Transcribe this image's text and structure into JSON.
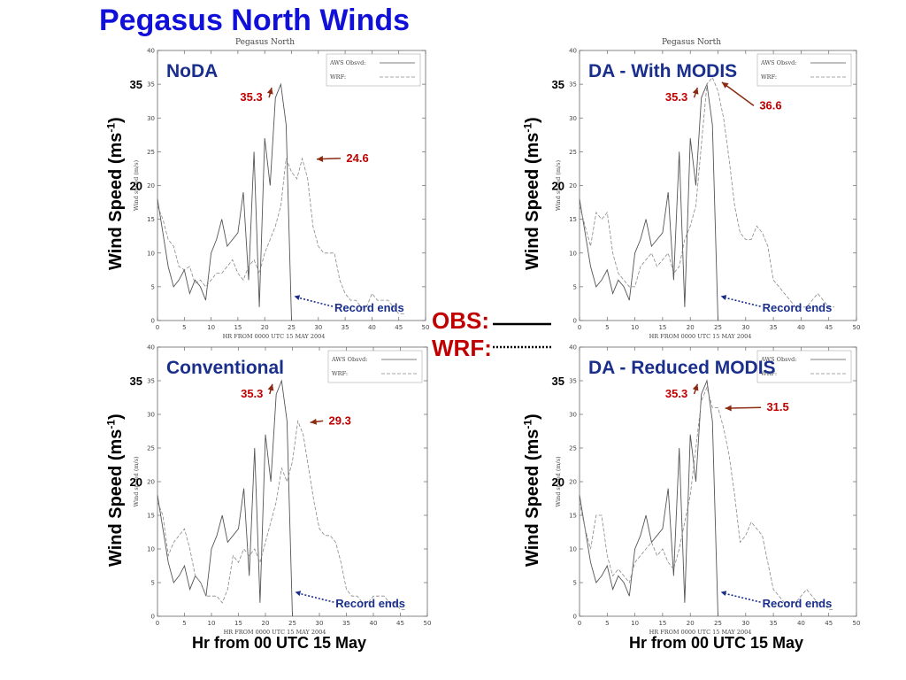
{
  "page": {
    "title": "Pegasus North Winds",
    "y_axis_label": "Wind Speed (ms-1)",
    "x_axis_label": "Hr from 00 UTC 15 May",
    "legend": {
      "obs_label": "OBS:",
      "wrf_label": "WRF:"
    }
  },
  "colors": {
    "title": "#1010d8",
    "panel_title": "#1a2f8c",
    "annotation": "#c00000",
    "arrow": "#8b2a10",
    "record_ends": "#1a2f8c",
    "obs_line": "#555555",
    "wrf_line": "#888888"
  },
  "chart_data": [
    {
      "id": "noda",
      "type": "line",
      "title": "NoDA",
      "plot_title": "Pegasus North",
      "plot_ylabel": "Wind speed (m/s)",
      "plot_xlabel": "HR FROM 0000 UTC 15 MAY 2004",
      "legend_labels": [
        "AWS Obsvd:",
        "WRF:"
      ],
      "xlim": [
        0,
        50
      ],
      "ylim": [
        0,
        40
      ],
      "xticks": [
        0,
        5,
        10,
        15,
        20,
        25,
        30,
        35,
        40,
        45,
        50
      ],
      "yticks": [
        0,
        5,
        10,
        15,
        20,
        25,
        30,
        35,
        40
      ],
      "highlight_ticks": [
        {
          "value": 35,
          "label": "35"
        },
        {
          "value": 20,
          "label": "20"
        }
      ],
      "series": [
        {
          "name": "AWS Obsvd:",
          "x": [
            0,
            1,
            2,
            3,
            4,
            5,
            6,
            7,
            8,
            9,
            10,
            11,
            12,
            13,
            14,
            15,
            16,
            17,
            18,
            19,
            20,
            21,
            22,
            23,
            24,
            25
          ],
          "y": [
            18,
            13,
            8,
            5,
            6,
            7.5,
            4,
            6,
            5,
            3,
            10,
            12,
            15,
            11,
            12,
            13,
            19,
            6,
            25,
            2,
            27,
            20,
            33,
            35,
            29,
            0
          ]
        },
        {
          "name": "WRF:",
          "x": [
            0,
            1,
            2,
            3,
            4,
            5,
            6,
            7,
            8,
            9,
            10,
            11,
            12,
            13,
            14,
            15,
            16,
            17,
            18,
            19,
            20,
            21,
            22,
            23,
            24,
            25,
            26,
            27,
            28,
            29,
            30,
            31,
            32,
            33,
            34,
            35,
            36,
            37,
            38,
            39,
            40,
            41,
            42,
            43,
            44,
            45,
            46
          ],
          "y": [
            17,
            15,
            12,
            11,
            8,
            7.5,
            8,
            5.5,
            6,
            5,
            6,
            7,
            7,
            8,
            9,
            7,
            6,
            8,
            9,
            7,
            10,
            12,
            14,
            17,
            24,
            22,
            21,
            24,
            21,
            14,
            11,
            10,
            10,
            10,
            6,
            4,
            3,
            3,
            2,
            2,
            4,
            3,
            3,
            3,
            2,
            1,
            1
          ]
        }
      ],
      "annotations": [
        {
          "label": "35.3",
          "x": 17.5,
          "y": 32.5,
          "arrow_to_x": 21.3,
          "arrow_to_y": 34.5
        },
        {
          "label": "24.6",
          "x": 37.3,
          "y": 23.5,
          "arrow_to_x": 29.7,
          "arrow_to_y": 23.9
        }
      ],
      "record_ends": {
        "label": "Record ends",
        "x": 33,
        "y": 1.3,
        "arrow_to_x": 25.5,
        "arrow_to_y": 3.6
      }
    },
    {
      "id": "da-with-modis",
      "type": "line",
      "title": "DA - With MODIS",
      "plot_title": "Pegasus North",
      "plot_ylabel": "Wind speed (m/s)",
      "plot_xlabel": "HR FROM 0000 UTC 15 MAY 2004",
      "legend_labels": [
        "AWS Obsvd:",
        "WRF:"
      ],
      "xlim": [
        0,
        50
      ],
      "ylim": [
        0,
        40
      ],
      "xticks": [
        0,
        5,
        10,
        15,
        20,
        25,
        30,
        35,
        40,
        45,
        50
      ],
      "yticks": [
        0,
        5,
        10,
        15,
        20,
        25,
        30,
        35,
        40
      ],
      "highlight_ticks": [
        {
          "value": 35,
          "label": "35"
        },
        {
          "value": 20,
          "label": "20"
        }
      ],
      "series": [
        {
          "name": "AWS Obsvd:",
          "x": [
            0,
            1,
            2,
            3,
            4,
            5,
            6,
            7,
            8,
            9,
            10,
            11,
            12,
            13,
            14,
            15,
            16,
            17,
            18,
            19,
            20,
            21,
            22,
            23,
            24,
            25
          ],
          "y": [
            18,
            13,
            8,
            5,
            6,
            7.5,
            4,
            6,
            5,
            3,
            10,
            12,
            15,
            11,
            12,
            13,
            19,
            6,
            25,
            2,
            27,
            20,
            33,
            35,
            29,
            0
          ]
        },
        {
          "name": "WRF:",
          "x": [
            0,
            1,
            2,
            3,
            4,
            5,
            6,
            7,
            8,
            9,
            10,
            11,
            12,
            13,
            14,
            15,
            16,
            17,
            18,
            19,
            20,
            21,
            22,
            23,
            24,
            25,
            26,
            27,
            28,
            29,
            30,
            31,
            32,
            33,
            34,
            35,
            36,
            37,
            38,
            39,
            40,
            41,
            42,
            43,
            44,
            45,
            46
          ],
          "y": [
            17,
            14,
            11,
            16,
            15,
            16,
            10,
            7,
            6,
            5,
            5,
            8,
            9,
            10,
            8,
            9,
            10,
            7,
            8,
            12,
            14,
            17,
            26,
            35,
            36,
            34,
            30,
            24,
            17,
            13,
            12,
            12,
            14,
            13,
            11,
            6,
            5,
            4,
            3,
            2,
            2,
            2,
            3,
            4,
            3,
            2,
            2
          ]
        }
      ],
      "annotations": [
        {
          "label": "35.3",
          "x": 17.5,
          "y": 32.5,
          "arrow_to_x": 21.3,
          "arrow_to_y": 34.5
        },
        {
          "label": "36.6",
          "x": 34.5,
          "y": 31.3,
          "arrow_to_x": 25.7,
          "arrow_to_y": 35.3
        }
      ],
      "record_ends": {
        "label": "Record ends",
        "x": 33,
        "y": 1.3,
        "arrow_to_x": 25.5,
        "arrow_to_y": 3.6
      }
    },
    {
      "id": "conventional",
      "type": "line",
      "title": "Conventional",
      "plot_title": "",
      "plot_ylabel": "Wind speed (m/s)",
      "plot_xlabel": "HR FROM 0000 UTC 15 MAY 2004",
      "legend_labels": [
        "AWS Obsvd:",
        "WRF:"
      ],
      "xlim": [
        0,
        50
      ],
      "ylim": [
        0,
        40
      ],
      "xticks": [
        0,
        5,
        10,
        15,
        20,
        25,
        30,
        35,
        40,
        45,
        50
      ],
      "yticks": [
        0,
        5,
        10,
        15,
        20,
        25,
        30,
        35,
        40
      ],
      "highlight_ticks": [
        {
          "value": 35,
          "label": "35"
        },
        {
          "value": 20,
          "label": "20"
        }
      ],
      "series": [
        {
          "name": "AWS Obsvd:",
          "x": [
            0,
            1,
            2,
            3,
            4,
            5,
            6,
            7,
            8,
            9,
            10,
            11,
            12,
            13,
            14,
            15,
            16,
            17,
            18,
            19,
            20,
            21,
            22,
            23,
            24,
            25
          ],
          "y": [
            18,
            13,
            8,
            5,
            6,
            7.5,
            4,
            6,
            5,
            3,
            10,
            12,
            15,
            11,
            12,
            13,
            19,
            6,
            25,
            2,
            27,
            20,
            33,
            35,
            29,
            0
          ]
        },
        {
          "name": "WRF:",
          "x": [
            0,
            1,
            2,
            3,
            4,
            5,
            6,
            7,
            8,
            9,
            10,
            11,
            12,
            13,
            14,
            15,
            16,
            17,
            18,
            19,
            20,
            21,
            22,
            23,
            24,
            25,
            26,
            27,
            28,
            29,
            30,
            31,
            32,
            33,
            34,
            35,
            36,
            37,
            38,
            39,
            40,
            41,
            42,
            43,
            44,
            45,
            46
          ],
          "y": [
            17,
            15,
            9,
            11,
            12,
            13,
            10,
            6,
            5,
            3,
            3,
            3,
            2,
            4,
            9,
            8,
            10,
            9,
            10,
            8,
            11,
            14,
            17,
            22,
            20,
            23,
            29,
            27,
            22,
            17,
            13,
            12,
            12,
            11,
            8,
            4,
            3,
            3,
            2,
            2,
            3,
            3,
            3,
            2,
            2,
            1,
            1
          ]
        }
      ],
      "annotations": [
        {
          "label": "35.3",
          "x": 17.5,
          "y": 32.5,
          "arrow_to_x": 21.3,
          "arrow_to_y": 34.5
        },
        {
          "label": "29.3",
          "x": 33.8,
          "y": 28.5,
          "arrow_to_x": 28.3,
          "arrow_to_y": 28.8
        }
      ],
      "record_ends": {
        "label": "Record ends",
        "x": 33,
        "y": 1.3,
        "arrow_to_x": 25.5,
        "arrow_to_y": 3.6
      }
    },
    {
      "id": "da-reduced-modis",
      "type": "line",
      "title": "DA - Reduced MODIS",
      "plot_title": "",
      "plot_ylabel": "Wind speed (m/s)",
      "plot_xlabel": "HR FROM 0000 UTC 15 MAY 2004",
      "legend_labels": [
        "AWS Obsvd:",
        "WRF:"
      ],
      "xlim": [
        0,
        50
      ],
      "ylim": [
        0,
        40
      ],
      "xticks": [
        0,
        5,
        10,
        15,
        20,
        25,
        30,
        35,
        40,
        45,
        50
      ],
      "yticks": [
        0,
        5,
        10,
        15,
        20,
        25,
        30,
        35,
        40
      ],
      "highlight_ticks": [
        {
          "value": 35,
          "label": "35"
        },
        {
          "value": 20,
          "label": "20"
        }
      ],
      "series": [
        {
          "name": "AWS Obsvd:",
          "x": [
            0,
            1,
            2,
            3,
            4,
            5,
            6,
            7,
            8,
            9,
            10,
            11,
            12,
            13,
            14,
            15,
            16,
            17,
            18,
            19,
            20,
            21,
            22,
            23,
            24,
            25
          ],
          "y": [
            18,
            13,
            8,
            5,
            6,
            7.5,
            4,
            6,
            5,
            3,
            10,
            12,
            15,
            11,
            12,
            13,
            19,
            6,
            25,
            2,
            27,
            20,
            33,
            35,
            29,
            0
          ]
        },
        {
          "name": "WRF:",
          "x": [
            0,
            1,
            2,
            3,
            4,
            5,
            6,
            7,
            8,
            9,
            10,
            11,
            12,
            13,
            14,
            15,
            16,
            17,
            18,
            19,
            20,
            21,
            22,
            23,
            24,
            25,
            26,
            27,
            28,
            29,
            30,
            31,
            32,
            33,
            34,
            35,
            36,
            37,
            38,
            39,
            40,
            41,
            42,
            43,
            44,
            45,
            46
          ],
          "y": [
            17,
            13,
            10,
            15,
            15,
            9,
            6,
            7,
            6,
            5,
            8,
            9,
            10,
            11,
            9,
            10,
            8,
            7,
            10,
            14,
            18,
            25,
            32,
            34,
            31,
            31,
            28,
            24,
            18,
            11,
            12,
            14,
            13,
            12,
            8,
            4,
            3,
            2,
            2,
            2,
            3,
            4,
            3,
            2,
            2,
            1,
            1
          ]
        }
      ],
      "annotations": [
        {
          "label": "35.3",
          "x": 17.5,
          "y": 32.5,
          "arrow_to_x": 21.3,
          "arrow_to_y": 34.5
        },
        {
          "label": "31.5",
          "x": 35.8,
          "y": 30.5,
          "arrow_to_x": 26.3,
          "arrow_to_y": 30.9
        }
      ],
      "record_ends": {
        "label": "Record ends",
        "x": 33,
        "y": 1.3,
        "arrow_to_x": 25.5,
        "arrow_to_y": 3.6
      }
    }
  ]
}
